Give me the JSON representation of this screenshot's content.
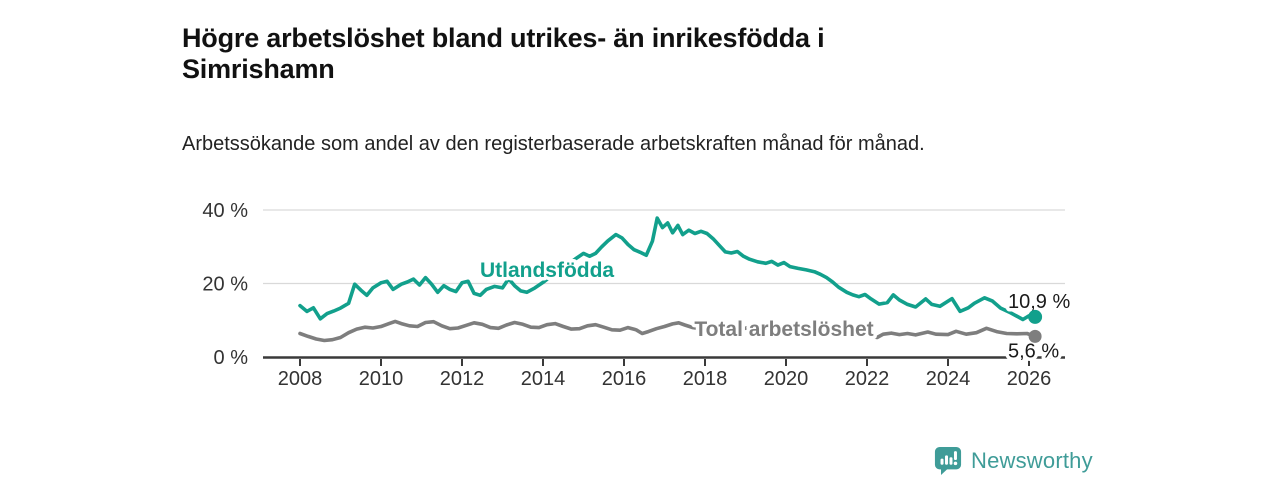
{
  "header": {
    "title": "Högre arbetslöshet bland utrikes- än inrikesfödda i Simrishamn",
    "subtitle": "Arbetssökande som andel av den registerbaserade arbetskraften månad för månad."
  },
  "footer": {
    "brand": "Newsworthy",
    "logo_icon": "bar-chart-speech-bubble-icon"
  },
  "colors": {
    "series_teal": "#12a08c",
    "series_gray": "#7e7e7e",
    "gridline": "#d9d9d9",
    "axis": "#3a3a3a",
    "tick_text": "#333333",
    "value_label_text": "#1a1a1a",
    "brand_teal": "#3f9c98"
  },
  "chart_data": {
    "type": "line",
    "unit": "%",
    "xlabel": "",
    "ylabel": "",
    "grid": "horizontal-only",
    "legend_position": "inline-labels",
    "xlim": [
      2007.1,
      2026.9
    ],
    "ylim": [
      0,
      42
    ],
    "x_ticks": [
      2008,
      2010,
      2012,
      2014,
      2016,
      2018,
      2020,
      2022,
      2024,
      2026
    ],
    "y_ticks": [
      {
        "value": 0,
        "label": "0 %"
      },
      {
        "value": 20,
        "label": "20 %"
      },
      {
        "value": 40,
        "label": "40 %"
      }
    ],
    "series": [
      {
        "id": "total",
        "name": "Total arbetslöshet",
        "color": "#7e7e7e",
        "end_value": 5.6,
        "end_label": "5,6 %",
        "line_label_pos": {
          "year": 2019.95,
          "pct": 5.7
        },
        "points": [
          [
            2008.0,
            6.4
          ],
          [
            2008.2,
            5.6
          ],
          [
            2008.4,
            4.9
          ],
          [
            2008.6,
            4.5
          ],
          [
            2008.8,
            4.7
          ],
          [
            2009.0,
            5.3
          ],
          [
            2009.2,
            6.6
          ],
          [
            2009.4,
            7.6
          ],
          [
            2009.6,
            8.1
          ],
          [
            2009.8,
            7.9
          ],
          [
            2010.0,
            8.3
          ],
          [
            2010.2,
            9.1
          ],
          [
            2010.35,
            9.7
          ],
          [
            2010.5,
            9.1
          ],
          [
            2010.7,
            8.5
          ],
          [
            2010.9,
            8.3
          ],
          [
            2011.1,
            9.4
          ],
          [
            2011.3,
            9.6
          ],
          [
            2011.5,
            8.5
          ],
          [
            2011.7,
            7.7
          ],
          [
            2011.9,
            7.9
          ],
          [
            2012.1,
            8.6
          ],
          [
            2012.3,
            9.3
          ],
          [
            2012.5,
            8.9
          ],
          [
            2012.7,
            8.0
          ],
          [
            2012.9,
            7.8
          ],
          [
            2013.1,
            8.7
          ],
          [
            2013.3,
            9.4
          ],
          [
            2013.5,
            8.9
          ],
          [
            2013.7,
            8.1
          ],
          [
            2013.9,
            8.0
          ],
          [
            2014.1,
            8.8
          ],
          [
            2014.3,
            9.1
          ],
          [
            2014.5,
            8.3
          ],
          [
            2014.7,
            7.6
          ],
          [
            2014.9,
            7.7
          ],
          [
            2015.1,
            8.5
          ],
          [
            2015.3,
            8.8
          ],
          [
            2015.5,
            8.1
          ],
          [
            2015.7,
            7.4
          ],
          [
            2015.9,
            7.3
          ],
          [
            2016.1,
            8.0
          ],
          [
            2016.3,
            7.4
          ],
          [
            2016.45,
            6.4
          ],
          [
            2016.6,
            6.9
          ],
          [
            2016.8,
            7.7
          ],
          [
            2017.0,
            8.3
          ],
          [
            2017.2,
            9.0
          ],
          [
            2017.35,
            9.3
          ],
          [
            2017.5,
            8.7
          ],
          [
            2017.7,
            8.0
          ],
          [
            2017.9,
            7.7
          ],
          [
            2018.1,
            8.3
          ],
          [
            2018.3,
            8.6
          ],
          [
            2018.5,
            8.0
          ],
          [
            2018.7,
            7.5
          ],
          [
            2018.9,
            7.6
          ],
          [
            2019.1,
            8.1
          ],
          [
            2019.3,
            8.3
          ],
          [
            2019.5,
            7.8
          ],
          [
            2019.7,
            7.3
          ],
          [
            2019.9,
            7.5
          ],
          [
            2020.1,
            8.0
          ],
          [
            2020.3,
            8.5
          ],
          [
            2020.5,
            8.1
          ],
          [
            2020.7,
            7.6
          ],
          [
            2020.9,
            7.3
          ],
          [
            2021.1,
            7.4
          ],
          [
            2021.3,
            7.1
          ],
          [
            2021.5,
            6.7
          ],
          [
            2021.7,
            6.3
          ],
          [
            2021.9,
            6.0
          ],
          [
            2022.1,
            5.6
          ],
          [
            2022.25,
            5.3
          ],
          [
            2022.4,
            6.2
          ],
          [
            2022.6,
            6.5
          ],
          [
            2022.8,
            6.1
          ],
          [
            2023.0,
            6.4
          ],
          [
            2023.2,
            6.0
          ],
          [
            2023.5,
            6.8
          ],
          [
            2023.7,
            6.2
          ],
          [
            2024.0,
            6.1
          ],
          [
            2024.2,
            7.0
          ],
          [
            2024.45,
            6.2
          ],
          [
            2024.7,
            6.6
          ],
          [
            2024.95,
            7.8
          ],
          [
            2025.2,
            6.9
          ],
          [
            2025.45,
            6.4
          ],
          [
            2025.7,
            6.3
          ],
          [
            2025.95,
            6.4
          ],
          [
            2026.15,
            5.6
          ]
        ]
      },
      {
        "id": "utlandsfodda",
        "name": "Utlandsfödda",
        "color": "#12a08c",
        "end_value": 10.9,
        "end_label": "10,9 %",
        "line_label_pos": {
          "year": 2014.1,
          "pct": 21.8
        },
        "points": [
          [
            2008.0,
            14.0
          ],
          [
            2008.17,
            12.4
          ],
          [
            2008.33,
            13.4
          ],
          [
            2008.5,
            10.4
          ],
          [
            2008.67,
            11.8
          ],
          [
            2008.83,
            12.5
          ],
          [
            2009.0,
            13.3
          ],
          [
            2009.2,
            14.6
          ],
          [
            2009.35,
            19.8
          ],
          [
            2009.5,
            18.2
          ],
          [
            2009.65,
            16.8
          ],
          [
            2009.8,
            18.8
          ],
          [
            2010.0,
            20.2
          ],
          [
            2010.15,
            20.6
          ],
          [
            2010.3,
            18.4
          ],
          [
            2010.5,
            19.8
          ],
          [
            2010.65,
            20.4
          ],
          [
            2010.8,
            21.2
          ],
          [
            2010.95,
            19.6
          ],
          [
            2011.1,
            21.6
          ],
          [
            2011.25,
            19.8
          ],
          [
            2011.4,
            17.6
          ],
          [
            2011.55,
            19.4
          ],
          [
            2011.7,
            18.4
          ],
          [
            2011.85,
            17.8
          ],
          [
            2012.0,
            20.2
          ],
          [
            2012.15,
            20.6
          ],
          [
            2012.3,
            17.3
          ],
          [
            2012.45,
            16.8
          ],
          [
            2012.6,
            18.4
          ],
          [
            2012.8,
            19.2
          ],
          [
            2013.0,
            18.8
          ],
          [
            2013.15,
            21.3
          ],
          [
            2013.3,
            19.4
          ],
          [
            2013.45,
            18.0
          ],
          [
            2013.6,
            17.6
          ],
          [
            2013.8,
            18.8
          ],
          [
            2014.0,
            20.3
          ],
          [
            2014.2,
            22.0
          ],
          [
            2014.4,
            23.6
          ],
          [
            2014.6,
            25.1
          ],
          [
            2014.8,
            26.7
          ],
          [
            2015.0,
            28.2
          ],
          [
            2015.15,
            27.4
          ],
          [
            2015.3,
            28.2
          ],
          [
            2015.45,
            30.0
          ],
          [
            2015.6,
            31.6
          ],
          [
            2015.8,
            33.3
          ],
          [
            2015.95,
            32.4
          ],
          [
            2016.1,
            30.6
          ],
          [
            2016.25,
            29.2
          ],
          [
            2016.4,
            28.5
          ],
          [
            2016.55,
            27.7
          ],
          [
            2016.7,
            31.5
          ],
          [
            2016.82,
            37.8
          ],
          [
            2016.95,
            35.2
          ],
          [
            2017.08,
            36.5
          ],
          [
            2017.2,
            33.8
          ],
          [
            2017.33,
            35.8
          ],
          [
            2017.45,
            33.3
          ],
          [
            2017.6,
            34.5
          ],
          [
            2017.75,
            33.6
          ],
          [
            2017.9,
            34.2
          ],
          [
            2018.05,
            33.6
          ],
          [
            2018.2,
            32.2
          ],
          [
            2018.35,
            30.4
          ],
          [
            2018.5,
            28.6
          ],
          [
            2018.65,
            28.3
          ],
          [
            2018.8,
            28.7
          ],
          [
            2018.95,
            27.4
          ],
          [
            2019.1,
            26.6
          ],
          [
            2019.3,
            25.9
          ],
          [
            2019.5,
            25.5
          ],
          [
            2019.65,
            26.0
          ],
          [
            2019.8,
            25.0
          ],
          [
            2019.95,
            25.7
          ],
          [
            2020.1,
            24.6
          ],
          [
            2020.3,
            24.1
          ],
          [
            2020.5,
            23.7
          ],
          [
            2020.7,
            23.2
          ],
          [
            2020.85,
            22.5
          ],
          [
            2021.0,
            21.6
          ],
          [
            2021.15,
            20.4
          ],
          [
            2021.3,
            19.0
          ],
          [
            2021.5,
            17.6
          ],
          [
            2021.65,
            16.9
          ],
          [
            2021.8,
            16.4
          ],
          [
            2021.95,
            17.0
          ],
          [
            2022.1,
            15.8
          ],
          [
            2022.3,
            14.4
          ],
          [
            2022.5,
            14.8
          ],
          [
            2022.65,
            16.9
          ],
          [
            2022.8,
            15.5
          ],
          [
            2023.0,
            14.3
          ],
          [
            2023.2,
            13.6
          ],
          [
            2023.45,
            15.8
          ],
          [
            2023.6,
            14.3
          ],
          [
            2023.8,
            13.8
          ],
          [
            2024.1,
            15.9
          ],
          [
            2024.3,
            12.4
          ],
          [
            2024.5,
            13.4
          ],
          [
            2024.65,
            14.6
          ],
          [
            2024.9,
            16.1
          ],
          [
            2025.1,
            15.2
          ],
          [
            2025.3,
            13.3
          ],
          [
            2025.55,
            12.0
          ],
          [
            2025.85,
            10.2
          ],
          [
            2026.0,
            11.2
          ],
          [
            2026.15,
            10.9
          ]
        ]
      }
    ]
  }
}
